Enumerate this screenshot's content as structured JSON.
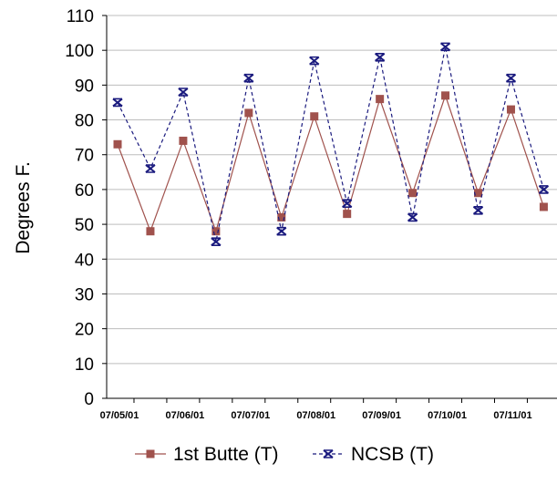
{
  "chart_data": {
    "type": "line",
    "title": "",
    "xlabel": "",
    "ylabel": "Degrees F.",
    "ylim": [
      0,
      110
    ],
    "y_ticks": [
      0,
      10,
      20,
      30,
      40,
      50,
      60,
      70,
      80,
      90,
      100,
      110
    ],
    "grid": "horizontal",
    "legend_position": "bottom",
    "x_tick_labels": [
      "07/05/01",
      "07/06/01",
      "07/07/01",
      "07/08/01",
      "07/09/01",
      "07/10/01",
      "07/11/01"
    ],
    "x": [
      "07/05/01 AM",
      "07/05/01 PM",
      "07/06/01 AM",
      "07/06/01 PM",
      "07/07/01 AM",
      "07/07/01 PM",
      "07/08/01 AM",
      "07/08/01 PM",
      "07/09/01 AM",
      "07/09/01 PM",
      "07/10/01 AM",
      "07/10/01 PM",
      "07/11/01 AM",
      "07/11/01 PM"
    ],
    "series": [
      {
        "name": "1st Butte (T)",
        "color": "#a0524d",
        "marker": "square",
        "line": "solid",
        "values": [
          73,
          48,
          74,
          48,
          82,
          52,
          81,
          53,
          86,
          59,
          87,
          59,
          83,
          55
        ]
      },
      {
        "name": "NCSB (T)",
        "color": "#1a1a7e",
        "marker": "star",
        "line": "dashed",
        "values": [
          85,
          66,
          88,
          45,
          92,
          48,
          97,
          56,
          98,
          52,
          101,
          54,
          92,
          60
        ]
      }
    ]
  }
}
